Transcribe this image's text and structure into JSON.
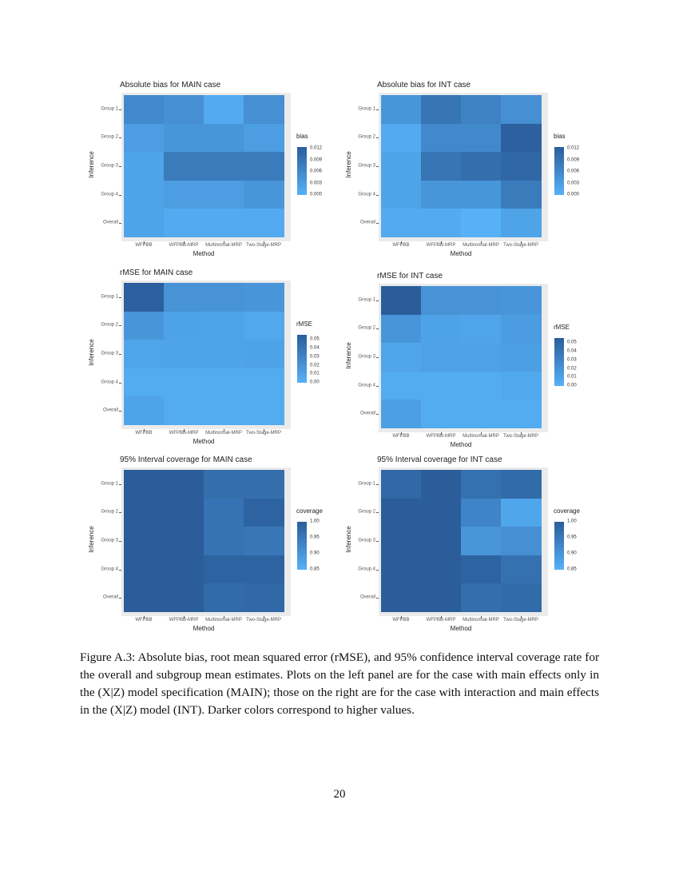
{
  "colors": {
    "low": "#56B1F7",
    "high": "#2B5D9B",
    "panel_bg": "#EBEBEB"
  },
  "chart_data": [
    {
      "type": "heatmap",
      "title": "Absolute bias for MAIN case",
      "xlabel": "Method",
      "ylabel": "Inference",
      "legend_title": "bias",
      "legend_position": "right",
      "x": [
        "WFPBB",
        "WFPBB-MRP",
        "Multinomial-MRP",
        "Two-Stage-MRP"
      ],
      "y": [
        "Group 1",
        "Group 2",
        "Group 3",
        "Group 4",
        "Overall"
      ],
      "scale": [
        0,
        0.0125
      ],
      "legend_ticks": [
        "0.000",
        "0.003",
        "0.006",
        "0.009",
        "0.012"
      ],
      "values": [
        [
          0.006,
          0.005,
          0.001,
          0.005
        ],
        [
          0.003,
          0.004,
          0.004,
          0.003
        ],
        [
          0.002,
          0.008,
          0.008,
          0.008
        ],
        [
          0.002,
          0.003,
          0.003,
          0.004
        ],
        [
          0.002,
          0.001,
          0.001,
          0.001
        ]
      ]
    },
    {
      "type": "heatmap",
      "title": "Absolute bias for INT case",
      "xlabel": "Method",
      "ylabel": "Inference",
      "legend_title": "bias",
      "legend_position": "right",
      "x": [
        "WFPBB",
        "WFPBB-MRP",
        "Multinomial-MRP",
        "Two-Stage-MRP"
      ],
      "y": [
        "Group 1",
        "Group 2",
        "Group 3",
        "Group 4",
        "Overall"
      ],
      "scale": [
        0,
        0.0125
      ],
      "legend_ticks": [
        "0.000",
        "0.003",
        "0.006",
        "0.009",
        "0.012"
      ],
      "values": [
        [
          0.004,
          0.009,
          0.007,
          0.005
        ],
        [
          0.001,
          0.006,
          0.006,
          0.012
        ],
        [
          0.002,
          0.009,
          0.01,
          0.011
        ],
        [
          0.002,
          0.004,
          0.004,
          0.008
        ],
        [
          0.001,
          0.001,
          0.0,
          0.002
        ]
      ]
    },
    {
      "type": "heatmap",
      "title": "rMSE for MAIN case",
      "xlabel": "Method",
      "ylabel": "Inference",
      "legend_title": "rMSE",
      "legend_position": "right",
      "x": [
        "WFPBB",
        "WFPBB-MRP",
        "Multinomial-MRP",
        "Two-Stage-MRP"
      ],
      "y": [
        "Group 1",
        "Group 2",
        "Group 3",
        "Group 4",
        "Overall"
      ],
      "scale": [
        0,
        0.056
      ],
      "legend_ticks": [
        "0.00",
        "0.01",
        "0.02",
        "0.03",
        "0.04",
        "0.05"
      ],
      "values": [
        [
          0.055,
          0.02,
          0.02,
          0.018
        ],
        [
          0.018,
          0.01,
          0.009,
          0.006
        ],
        [
          0.008,
          0.009,
          0.009,
          0.01
        ],
        [
          0.004,
          0.004,
          0.004,
          0.004
        ],
        [
          0.009,
          0.004,
          0.004,
          0.004
        ]
      ]
    },
    {
      "type": "heatmap",
      "title": "rMSE for INT case",
      "xlabel": "Method",
      "ylabel": "Inference",
      "legend_title": "rMSE",
      "legend_position": "right",
      "x": [
        "WFPBB",
        "WFPBB-MRP",
        "Multinomial-MRP",
        "Two-Stage-MRP"
      ],
      "y": [
        "Group 1",
        "Group 2",
        "Group 3",
        "Group 4",
        "Overall"
      ],
      "scale": [
        0,
        0.056
      ],
      "legend_ticks": [
        "0.00",
        "0.01",
        "0.02",
        "0.03",
        "0.04",
        "0.05"
      ],
      "values": [
        [
          0.056,
          0.02,
          0.02,
          0.018
        ],
        [
          0.018,
          0.01,
          0.008,
          0.014
        ],
        [
          0.008,
          0.011,
          0.011,
          0.012
        ],
        [
          0.004,
          0.004,
          0.004,
          0.006
        ],
        [
          0.012,
          0.004,
          0.004,
          0.004
        ]
      ]
    },
    {
      "type": "heatmap",
      "title": "95% Interval coverage for MAIN case",
      "xlabel": "Method",
      "ylabel": "Inference",
      "legend_title": "coverage",
      "legend_position": "right",
      "x": [
        "WFPBB",
        "WFPBB-MRP",
        "Multinomial-MRP",
        "Two-Stage-MRP"
      ],
      "y": [
        "Group 1",
        "Group 2",
        "Group 3",
        "Group 4",
        "Overall"
      ],
      "scale": [
        0.85,
        1.0
      ],
      "legend_ticks": [
        "0.85",
        "0.90",
        "0.95",
        "1.00"
      ],
      "values": [
        [
          1.0,
          1.0,
          0.97,
          0.97
        ],
        [
          1.0,
          1.0,
          0.96,
          0.99
        ],
        [
          1.0,
          1.0,
          0.96,
          0.955
        ],
        [
          1.0,
          1.0,
          0.99,
          0.99
        ],
        [
          1.0,
          1.0,
          0.975,
          0.98
        ]
      ]
    },
    {
      "type": "heatmap",
      "title": "95% Interval coverage for INT case",
      "xlabel": "Method",
      "ylabel": "Inference",
      "legend_title": "coverage",
      "legend_position": "right",
      "x": [
        "WFPBB",
        "WFPBB-MRP",
        "Multinomial-MRP",
        "Two-Stage-MRP"
      ],
      "y": [
        "Group 1",
        "Group 2",
        "Group 3",
        "Group 4",
        "Overall"
      ],
      "scale": [
        0.85,
        1.0
      ],
      "legend_ticks": [
        "0.85",
        "0.90",
        "0.95",
        "1.00"
      ],
      "values": [
        [
          0.98,
          1.0,
          0.965,
          0.975
        ],
        [
          1.0,
          1.0,
          0.93,
          0.87
        ],
        [
          1.0,
          1.0,
          0.9,
          0.91
        ],
        [
          1.0,
          1.0,
          0.99,
          0.965
        ],
        [
          1.0,
          1.0,
          0.97,
          0.975
        ]
      ]
    }
  ],
  "caption": "Figure A.3: Absolute bias, root mean squared error (rMSE), and 95% confidence interval coverage rate for the overall and subgroup mean estimates. Plots on the left panel are for the case with main effects only in the (X|Z) model specification (MAIN); those on the right are for the case with interaction and main effects in the (X|Z) model (INT). Darker colors correspond to higher values.",
  "page_number": "20"
}
